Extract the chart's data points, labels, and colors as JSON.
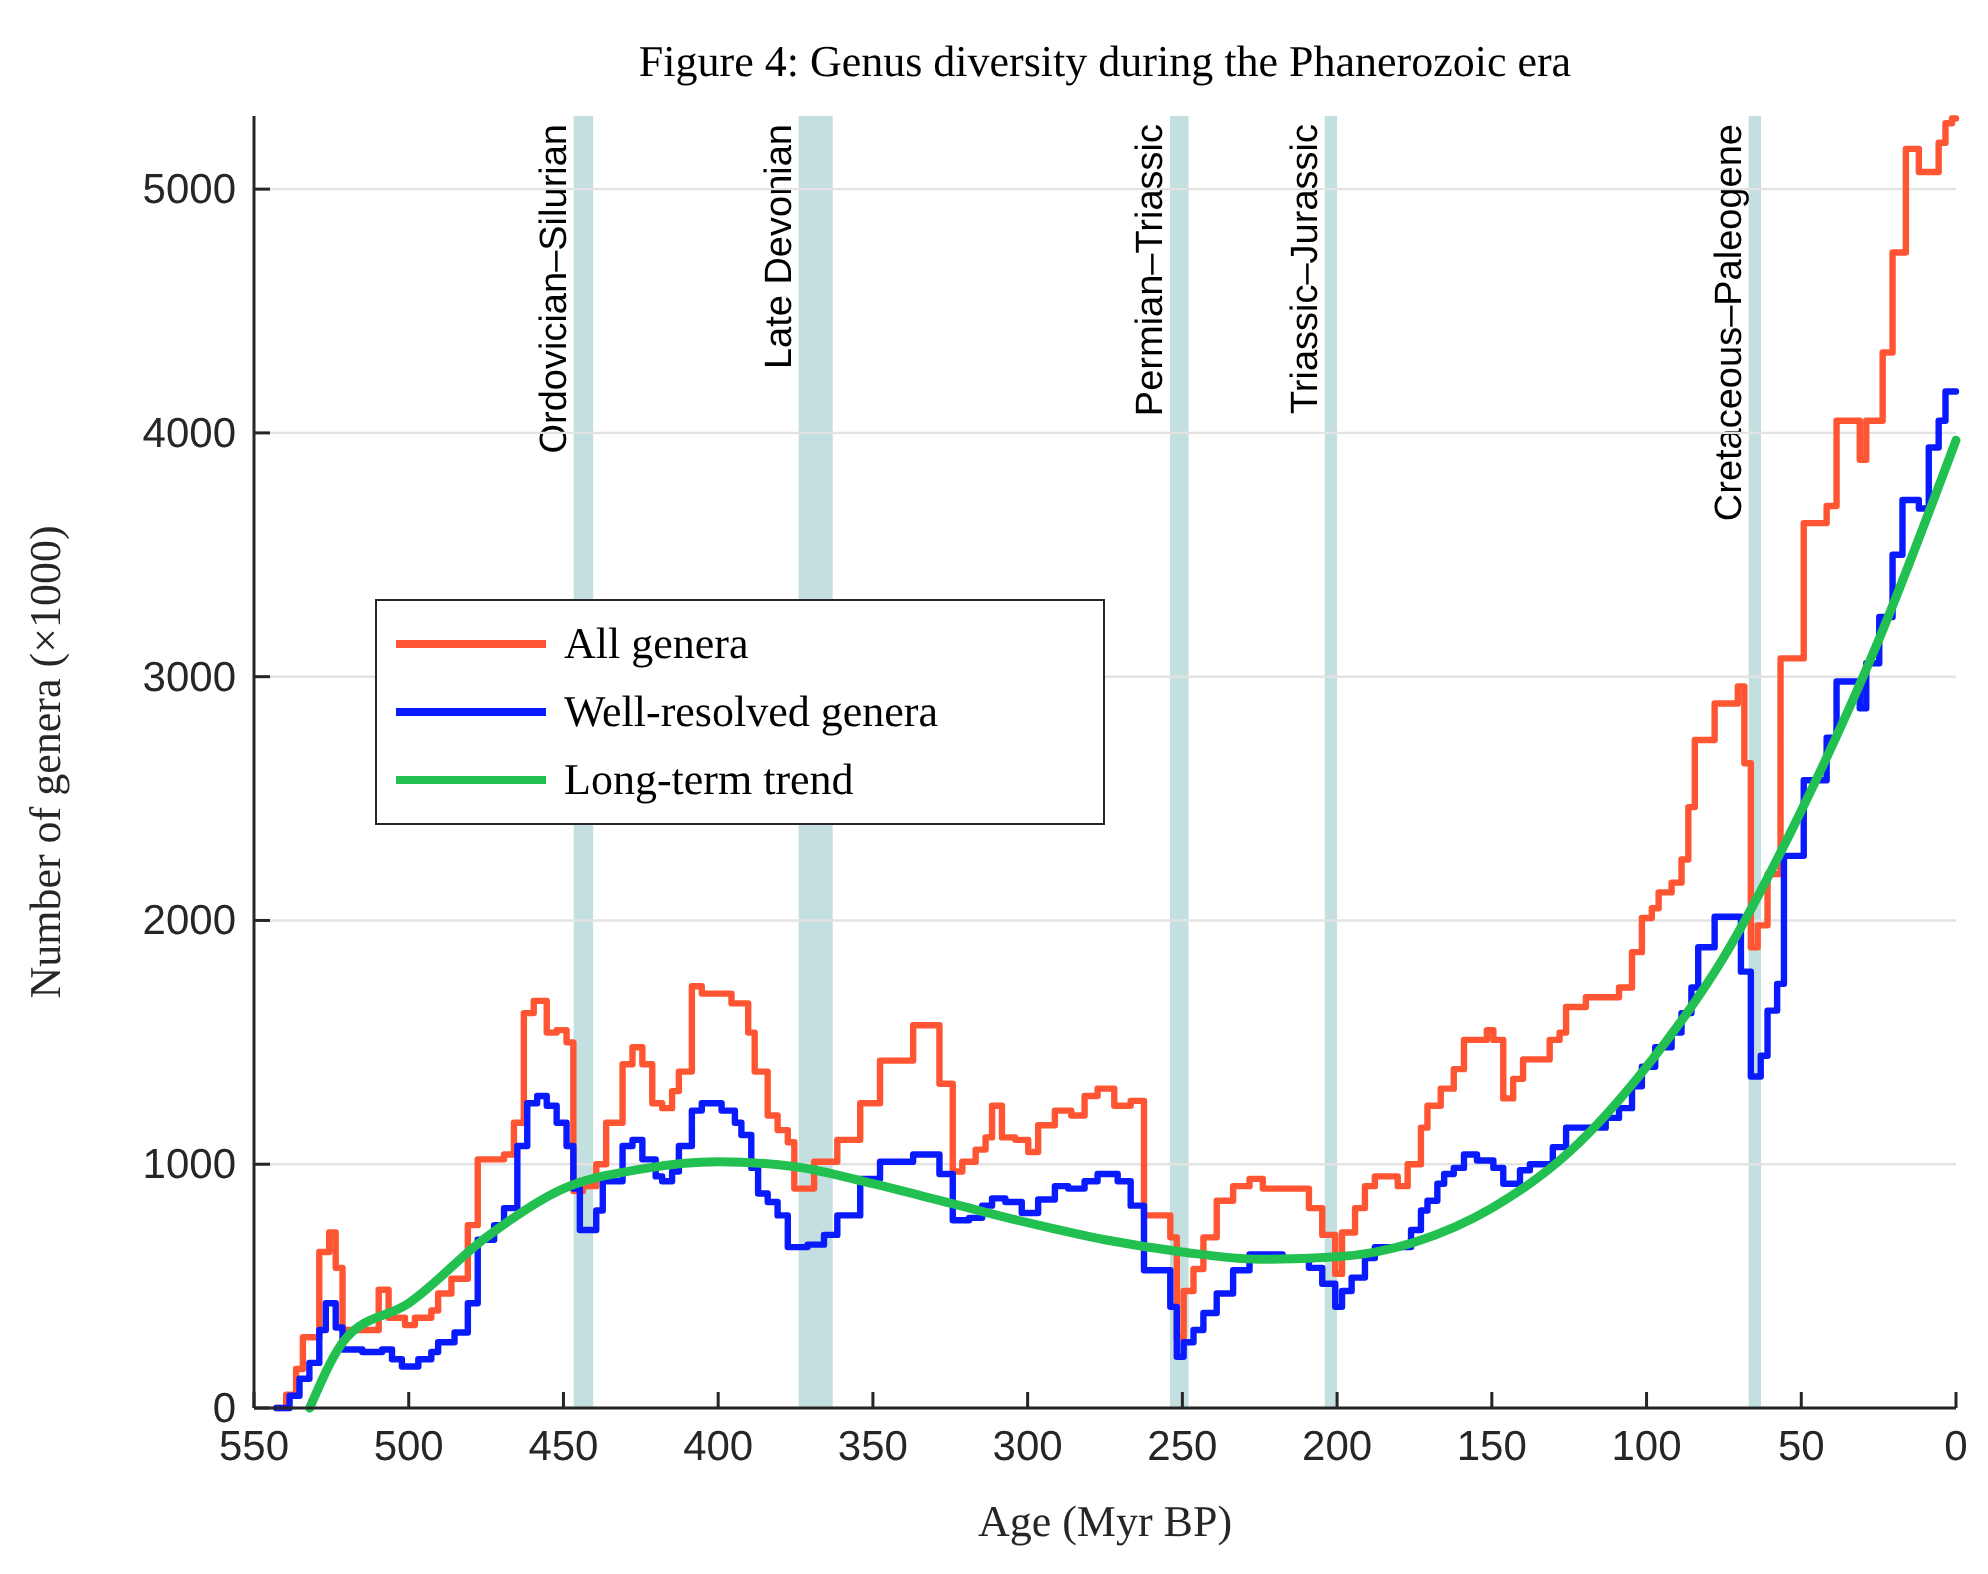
{
  "chart_data": {
    "type": "step",
    "title": "Figure 4: Genus diversity during the Phanerozoic era",
    "xlabel": "Age (Myr BP)",
    "ylabel": "Number of genera (×1000)",
    "xlim": [
      550,
      0
    ],
    "xticks": [
      550,
      500,
      450,
      400,
      350,
      300,
      250,
      200,
      150,
      100,
      50,
      0
    ],
    "ylim": [
      0,
      5300
    ],
    "yticks": [
      0,
      1000,
      2000,
      3000,
      4000,
      5000
    ],
    "grid": "y",
    "legend": "left",
    "line_style": "solid",
    "marker": "none",
    "series": [
      {
        "name": "All genera",
        "color": "#ff5533",
        "type": "step",
        "x": [
          542.8,
          539.6,
          536.4,
          534.2,
          528.9,
          525.7,
          523.6,
          521.4,
          509.7,
          506.5,
          501.2,
          498,
          492.7,
          490.5,
          486.2,
          480.9,
          477.7,
          469.2,
          466,
          462.8,
          459.6,
          455.4,
          452.2,
          449,
          446.8,
          443.7,
          439.4,
          436.2,
          430.9,
          427.7,
          424.5,
          421.3,
          418.1,
          414.9,
          412.7,
          408.5,
          405.3,
          395.7,
          390.3,
          388.2,
          384,
          380.8,
          377.5,
          375.4,
          369,
          361.5,
          354.1,
          347.7,
          337,
          328.5,
          324.2,
          321.1,
          316.8,
          313.6,
          311.5,
          308.3,
          304,
          299.8,
          296.6,
          291.2,
          285.9,
          281.6,
          277.4,
          272,
          266.7,
          262.4,
          253.9,
          251.8,
          249.6,
          246.4,
          243.2,
          238.9,
          233.6,
          228.3,
          224,
          209.1,
          204.8,
          200.6,
          198.4,
          194.2,
          191,
          187.8,
          180.4,
          177.2,
          172.9,
          170.8,
          166.5,
          162.3,
          159,
          151.6,
          149.5,
          146.3,
          143.1,
          139.9,
          131.3,
          128.1,
          126,
          119.6,
          108.9,
          104.7,
          101.5,
          98.3,
          96.1,
          91.9,
          88.7,
          86.5,
          84.4,
          78,
          70.5,
          68.4,
          66.3,
          64.1,
          60.9,
          56.7,
          49.2,
          41.8,
          38.6,
          31.1,
          29,
          23.7,
          20.5,
          16.2,
          12,
          5.6,
          3.4,
          1.3,
          0
        ],
        "values": [
          0,
          55,
          160,
          290,
          640,
          720,
          575,
          320,
          485,
          370,
          340,
          370,
          400,
          470,
          530,
          750,
          1020,
          1040,
          1170,
          1620,
          1670,
          1540,
          1550,
          1500,
          890,
          910,
          1000,
          1170,
          1410,
          1480,
          1410,
          1250,
          1230,
          1300,
          1380,
          1730,
          1700,
          1660,
          1540,
          1380,
          1200,
          1140,
          1090,
          900,
          1010,
          1100,
          1250,
          1425,
          1570,
          1330,
          970,
          1010,
          1060,
          1110,
          1240,
          1110,
          1100,
          1050,
          1160,
          1220,
          1200,
          1280,
          1310,
          1240,
          1260,
          790,
          700,
          290,
          480,
          570,
          700,
          850,
          910,
          940,
          900,
          820,
          710,
          550,
          720,
          820,
          910,
          950,
          910,
          1000,
          1150,
          1240,
          1310,
          1390,
          1510,
          1550,
          1510,
          1270,
          1350,
          1430,
          1510,
          1540,
          1645,
          1685,
          1725,
          1870,
          2010,
          2050,
          2115,
          2155,
          2250,
          2465,
          2740,
          2890,
          2960,
          2645,
          1890,
          1980,
          2190,
          3075,
          3630,
          3700,
          4050,
          3890,
          4050,
          4330,
          4740,
          5165,
          5070,
          5190,
          5270,
          5290,
          5290
        ]
      },
      {
        "name": "Well-resolved genera",
        "color": "#0a1aff",
        "type": "step",
        "x": [
          542.8,
          538.5,
          535.3,
          532.1,
          528.9,
          526.8,
          523.6,
          521.4,
          515,
          508.6,
          505.4,
          502.2,
          496.9,
          492.7,
          490.5,
          485.2,
          480.9,
          477.7,
          472.4,
          469.2,
          464.9,
          461.7,
          458.5,
          455.4,
          452.2,
          449,
          446.8,
          444.7,
          439.4,
          437.3,
          430.9,
          427.7,
          424.5,
          420.2,
          418.1,
          414.9,
          412.7,
          408.5,
          405.3,
          398.9,
          394.6,
          392.5,
          389.3,
          387.1,
          384,
          380.8,
          377.5,
          371.1,
          365.8,
          361.5,
          354.1,
          347.7,
          337,
          328.5,
          324.2,
          318.9,
          314.7,
          311.5,
          307.2,
          301.9,
          296.6,
          291.2,
          286.9,
          281.6,
          277.4,
          270.9,
          266.7,
          262.4,
          253.9,
          251.8,
          249.6,
          246.4,
          243.2,
          238.9,
          233.6,
          228.3,
          217.6,
          209.1,
          204.8,
          200.6,
          198.4,
          195.3,
          191,
          187.8,
          176.1,
          172.9,
          170.8,
          167.6,
          165.4,
          162.3,
          159,
          154.8,
          149.5,
          146.3,
          140.9,
          137.7,
          130.3,
          126,
          113.2,
          108.9,
          104.7,
          101.5,
          97.2,
          91.9,
          88.7,
          85.5,
          83.3,
          78,
          69.5,
          66.3,
          63.1,
          60.9,
          57.8,
          55.6,
          49.2,
          41.8,
          38.6,
          31.1,
          29,
          24.8,
          20.5,
          17.3,
          12,
          8.8,
          5.6,
          3.4,
          0
        ],
        "values": [
          0,
          50,
          120,
          185,
          320,
          430,
          330,
          240,
          230,
          240,
          200,
          170,
          200,
          230,
          270,
          310,
          430,
          690,
          750,
          820,
          1075,
          1250,
          1280,
          1240,
          1170,
          1075,
          900,
          730,
          810,
          930,
          1075,
          1100,
          1020,
          950,
          930,
          970,
          1075,
          1220,
          1250,
          1220,
          1170,
          1120,
          985,
          880,
          845,
          790,
          660,
          670,
          710,
          790,
          940,
          1010,
          1040,
          960,
          770,
          780,
          830,
          860,
          845,
          800,
          855,
          910,
          900,
          930,
          960,
          930,
          830,
          565,
          415,
          210,
          270,
          320,
          390,
          470,
          565,
          630,
          615,
          575,
          510,
          415,
          480,
          535,
          615,
          660,
          730,
          810,
          850,
          920,
          960,
          985,
          1040,
          1015,
          985,
          920,
          975,
          1000,
          1070,
          1150,
          1190,
          1230,
          1320,
          1400,
          1480,
          1540,
          1620,
          1725,
          1890,
          2015,
          1790,
          1360,
          1445,
          1630,
          1740,
          2265,
          2575,
          2750,
          2980,
          2870,
          3055,
          3245,
          3500,
          3725,
          3690,
          3940,
          4050,
          4170,
          4170
        ]
      },
      {
        "name": "Long-term trend",
        "color": "#22c050",
        "type": "line",
        "x": [
          532,
          520,
          500,
          475,
          450,
          425,
          400,
          375,
          350,
          325,
          300,
          275,
          250,
          225,
          200,
          175,
          150,
          125,
          100,
          75,
          50,
          25,
          0
        ],
        "values": [
          0,
          290,
          430,
          700,
          900,
          980,
          1010,
          990,
          920,
          840,
          760,
          690,
          640,
          610,
          620,
          680,
          820,
          1050,
          1400,
          1850,
          2450,
          3150,
          3970
        ]
      }
    ],
    "bands": [
      {
        "axis": "x",
        "from": 446.7,
        "to": 440.4,
        "label": "Ordovician–Silurian",
        "color": "#c4dfdf"
      },
      {
        "axis": "x",
        "from": 374,
        "to": 363,
        "label": "Late Devonian",
        "color": "#c4dfdf"
      },
      {
        "axis": "x",
        "from": 254,
        "to": 248,
        "label": "Permian–Triassic",
        "color": "#c4dfdf"
      },
      {
        "axis": "x",
        "from": 204,
        "to": 200,
        "label": "Triassic–Jurassic",
        "color": "#c4dfdf"
      },
      {
        "axis": "x",
        "from": 67,
        "to": 63,
        "label": "Cretaceous–Paleogene",
        "color": "#c4dfdf"
      }
    ]
  }
}
